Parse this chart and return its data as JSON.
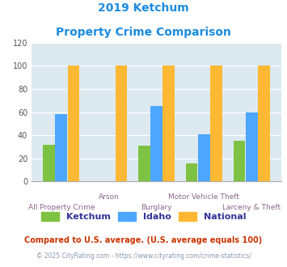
{
  "title_line1": "2019 Ketchum",
  "title_line2": "Property Crime Comparison",
  "title_color": "#1b8be0",
  "categories": [
    "All Property Crime",
    "Arson",
    "Burglary",
    "Motor Vehicle Theft",
    "Larceny & Theft"
  ],
  "ketchum": [
    32,
    0,
    31,
    16,
    35
  ],
  "idaho": [
    58,
    0,
    65,
    41,
    60
  ],
  "national": [
    100,
    100,
    100,
    100,
    100
  ],
  "ketchum_color": "#7dc242",
  "idaho_color": "#4da6ff",
  "national_color": "#ffb833",
  "ylim": [
    0,
    120
  ],
  "yticks": [
    0,
    20,
    40,
    60,
    80,
    100,
    120
  ],
  "bg_color": "#dce9f0",
  "legend_labels": [
    "Ketchum",
    "Idaho",
    "National"
  ],
  "legend_text_color": "#333399",
  "footnote1": "Compared to U.S. average. (U.S. average equals 100)",
  "footnote2": "© 2025 CityRating.com - https://www.cityrating.com/crime-statistics/",
  "footnote1_color": "#cc3300",
  "footnote2_color": "#8899aa",
  "xlabel_color": "#886688",
  "bar_width": 0.25
}
